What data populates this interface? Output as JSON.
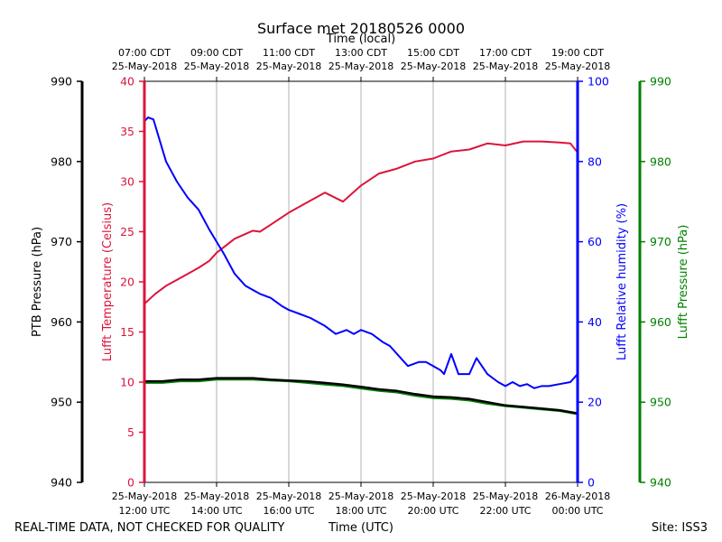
{
  "chart_data": {
    "type": "line",
    "title": "Surface met 20180526 0000",
    "top_axis_label": "Time (local)",
    "top_ticks": [
      {
        "t": 12,
        "line1": "07:00 CDT",
        "line2": "25-May-2018"
      },
      {
        "t": 14,
        "line1": "09:00 CDT",
        "line2": "25-May-2018"
      },
      {
        "t": 16,
        "line1": "11:00 CDT",
        "line2": "25-May-2018"
      },
      {
        "t": 18,
        "line1": "13:00 CDT",
        "line2": "25-May-2018"
      },
      {
        "t": 20,
        "line1": "15:00 CDT",
        "line2": "25-May-2018"
      },
      {
        "t": 22,
        "line1": "17:00 CDT",
        "line2": "25-May-2018"
      },
      {
        "t": 24,
        "line1": "19:00 CDT",
        "line2": "25-May-2018"
      }
    ],
    "bottom_ticks": [
      {
        "t": 12,
        "line1": "25-May-2018",
        "line2": "12:00 UTC"
      },
      {
        "t": 14,
        "line1": "25-May-2018",
        "line2": "14:00 UTC"
      },
      {
        "t": 16,
        "line1": "25-May-2018",
        "line2": "16:00 UTC"
      },
      {
        "t": 18,
        "line1": "25-May-2018",
        "line2": "18:00 UTC"
      },
      {
        "t": 20,
        "line1": "25-May-2018",
        "line2": "20:00 UTC"
      },
      {
        "t": 22,
        "line1": "25-May-2018",
        "line2": "22:00 UTC"
      },
      {
        "t": 24,
        "line1": "26-May-2018",
        "line2": "00:00 UTC"
      }
    ],
    "x_range_utc_hours": [
      12,
      24
    ],
    "axes": {
      "ptb_pressure": {
        "label": "PTB Pressure (hPa)",
        "range": [
          940,
          990
        ],
        "ticks": [
          940,
          950,
          960,
          970,
          980,
          990
        ],
        "color": "#000000"
      },
      "temperature": {
        "label": "Lufft Temperature (Celsius)",
        "range": [
          0,
          40
        ],
        "ticks": [
          0,
          5,
          10,
          15,
          20,
          25,
          30,
          35,
          40
        ],
        "color": "#dc143c"
      },
      "humidity": {
        "label": "Lufft Relative humidity (%)",
        "range": [
          0,
          100
        ],
        "ticks": [
          0,
          20,
          40,
          60,
          80,
          100
        ],
        "color": "#0000ff"
      },
      "lufft_pressure": {
        "label": "Lufft Pressure (hPa)",
        "range": [
          940,
          990
        ],
        "ticks": [
          940,
          950,
          960,
          970,
          980,
          990
        ],
        "color": "#008000"
      }
    },
    "series": [
      {
        "name": "Lufft Temperature",
        "axis": "temperature",
        "color": "#dc143c",
        "x": [
          12.0,
          12.3,
          12.6,
          13.0,
          13.5,
          13.8,
          14.0,
          14.5,
          15.0,
          15.2,
          15.5,
          16.0,
          16.5,
          17.0,
          17.5,
          18.0,
          18.5,
          19.0,
          19.5,
          20.0,
          20.5,
          21.0,
          21.5,
          22.0,
          22.5,
          23.0,
          23.5,
          23.8,
          24.0
        ],
        "y": [
          17.8,
          18.8,
          19.6,
          20.4,
          21.4,
          22.1,
          22.9,
          24.3,
          25.1,
          25.0,
          25.7,
          26.9,
          27.9,
          28.9,
          28.0,
          29.6,
          30.8,
          31.3,
          32.0,
          32.3,
          33.0,
          33.2,
          33.8,
          33.6,
          34.0,
          34.0,
          33.9,
          33.8,
          32.9
        ]
      },
      {
        "name": "Lufft Relative humidity",
        "axis": "humidity",
        "color": "#0000ff",
        "x": [
          12.0,
          12.1,
          12.25,
          12.4,
          12.6,
          12.9,
          13.2,
          13.5,
          13.8,
          14.0,
          14.2,
          14.5,
          14.8,
          15.0,
          15.2,
          15.5,
          15.8,
          16.0,
          16.3,
          16.6,
          17.0,
          17.3,
          17.6,
          17.8,
          18.0,
          18.3,
          18.6,
          18.8,
          19.0,
          19.3,
          19.6,
          19.8,
          20.0,
          20.2,
          20.3,
          20.5,
          20.7,
          20.9,
          21.0,
          21.2,
          21.5,
          21.8,
          22.0,
          22.2,
          22.4,
          22.6,
          22.8,
          23.0,
          23.2,
          23.5,
          23.8,
          24.0
        ],
        "y": [
          90,
          91,
          90.5,
          86,
          80,
          75,
          71,
          68,
          63,
          60,
          57,
          52,
          49,
          48,
          47,
          46,
          44,
          43,
          42,
          41,
          39,
          37,
          38,
          37,
          38,
          37,
          35,
          34,
          32,
          29,
          30,
          30,
          29,
          28,
          27,
          32,
          27,
          27,
          27,
          31,
          27,
          25,
          24,
          25,
          24,
          24.5,
          23.5,
          24,
          24,
          24.5,
          25,
          27
        ]
      },
      {
        "name": "PTB Pressure",
        "axis": "ptb_pressure",
        "color": "#000000",
        "x": [
          12.0,
          12.5,
          13.0,
          13.5,
          14.0,
          14.5,
          15.0,
          15.5,
          16.0,
          16.5,
          17.0,
          17.5,
          18.0,
          18.5,
          19.0,
          19.5,
          20.0,
          20.5,
          21.0,
          21.5,
          22.0,
          22.5,
          23.0,
          23.5,
          24.0
        ],
        "y": [
          952.6,
          952.6,
          952.8,
          952.8,
          953.0,
          953.0,
          953.0,
          952.8,
          952.7,
          952.6,
          952.4,
          952.2,
          951.9,
          951.6,
          951.4,
          951.0,
          950.7,
          950.6,
          950.4,
          950.0,
          949.6,
          949.4,
          949.2,
          949.0,
          948.6
        ]
      },
      {
        "name": "Lufft Pressure",
        "axis": "lufft_pressure",
        "color": "#008000",
        "x": [
          12.0,
          12.5,
          13.0,
          13.5,
          14.0,
          14.5,
          15.0,
          15.5,
          16.0,
          16.5,
          17.0,
          17.5,
          18.0,
          18.5,
          19.0,
          19.5,
          20.0,
          20.5,
          21.0,
          21.5,
          22.0,
          22.5,
          23.0,
          23.5,
          24.0
        ],
        "y": [
          952.4,
          952.4,
          952.6,
          952.6,
          952.8,
          952.8,
          952.8,
          952.7,
          952.6,
          952.4,
          952.2,
          952.0,
          951.7,
          951.4,
          951.2,
          950.8,
          950.5,
          950.4,
          950.2,
          949.8,
          949.5,
          949.3,
          949.1,
          948.9,
          948.5
        ]
      }
    ]
  },
  "footer": {
    "left": "REAL-TIME DATA, NOT CHECKED FOR QUALITY",
    "center": "Time (UTC)",
    "right": "Site: ISS3"
  }
}
